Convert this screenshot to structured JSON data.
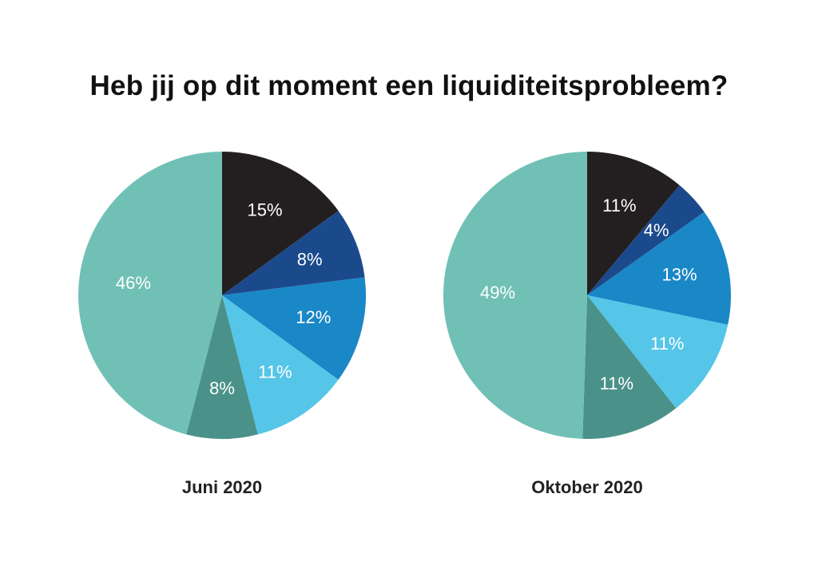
{
  "title": "Heb jij op dit moment een liquiditeitsprobleem?",
  "colors": [
    "#231f20",
    "#1b4a8c",
    "#1a87c6",
    "#55c5e8",
    "#4a9189",
    "#70c0b6"
  ],
  "chart_data": [
    {
      "type": "pie",
      "title": "Juni 2020",
      "slices": [
        {
          "label": "15%",
          "value": 15
        },
        {
          "label": "8%",
          "value": 8
        },
        {
          "label": "12%",
          "value": 12
        },
        {
          "label": "11%",
          "value": 11
        },
        {
          "label": "8%",
          "value": 8
        },
        {
          "label": "46%",
          "value": 46
        }
      ]
    },
    {
      "type": "pie",
      "title": "Oktober 2020",
      "slices": [
        {
          "label": "11%",
          "value": 11
        },
        {
          "label": "4%",
          "value": 4
        },
        {
          "label": "13%",
          "value": 13
        },
        {
          "label": "11%",
          "value": 11
        },
        {
          "label": "11%",
          "value": 11
        },
        {
          "label": "49%",
          "value": 49
        }
      ]
    }
  ]
}
